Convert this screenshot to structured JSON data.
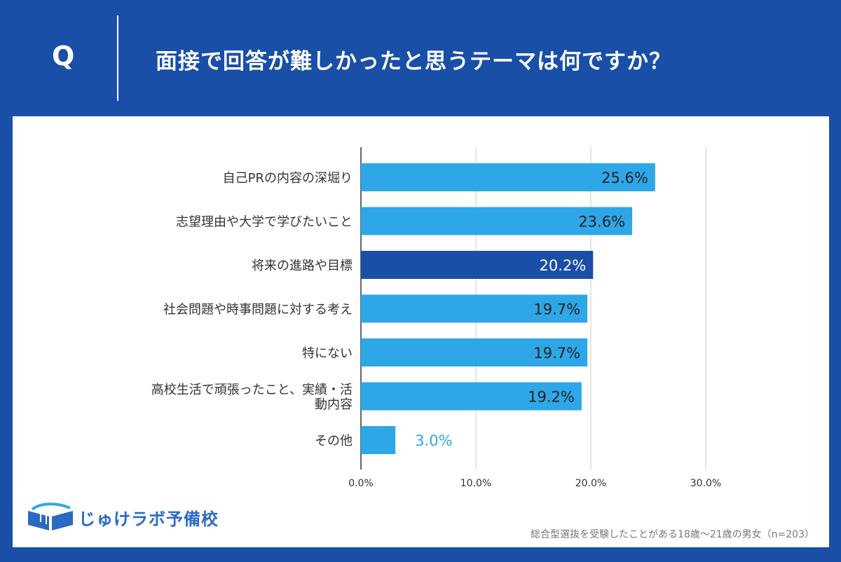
{
  "header": {
    "q_mark": "Q",
    "question": "面接で回答が難しかったと思うテーマは何ですか？"
  },
  "chart_data": {
    "type": "bar",
    "orientation": "horizontal",
    "title": "面接で回答が難しかったと思うテーマは何ですか？",
    "categories": [
      [
        "自己PRの内容の深堀り"
      ],
      [
        "志望理由や大学で学びたいこと"
      ],
      [
        "将来の進路や目標"
      ],
      [
        "社会問題や時事問題に対する考え"
      ],
      [
        "特にない"
      ],
      [
        "高校生活で頑張ったこと、実績・活",
        "動内容"
      ],
      [
        "その他"
      ]
    ],
    "values": [
      25.6,
      23.6,
      20.2,
      19.7,
      19.7,
      19.2,
      3.0
    ],
    "value_labels": [
      "25.6%",
      "23.6%",
      "20.2%",
      "19.7%",
      "19.7%",
      "19.2%",
      "3.0%"
    ],
    "highlight_index": 2,
    "xlim": [
      0,
      30
    ],
    "ticks": [
      0,
      10,
      20,
      30
    ],
    "tick_labels": [
      "0.0%",
      "10.0%",
      "20.0%",
      "30.0%"
    ],
    "grid": true,
    "colors": {
      "bar": "#2ea7e8",
      "highlight": "#1a4fa8",
      "label_inside": "#222222",
      "label_inside_highlight": "#ffffff",
      "label_outside": "#2ea7e8",
      "grid": "#cccccc",
      "axis": "#333333",
      "text": "#333333"
    }
  },
  "footer": {
    "logo_text": "じゅけラボ予備校",
    "note": "総合型選抜を受験したことがある18歳～21歳の男女（n=203）"
  },
  "colors": {
    "header_bg": "#1a4fa8",
    "logo": "#2a6ac4"
  }
}
